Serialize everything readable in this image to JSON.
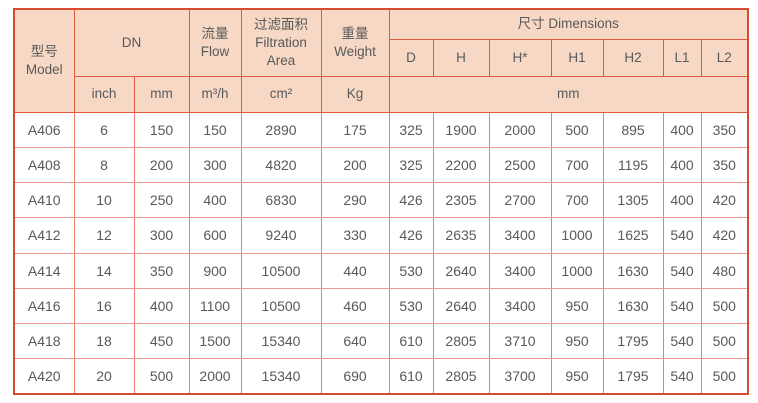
{
  "colors": {
    "header_background": "#f7d8c4",
    "grid_line": "#df5a3e",
    "data_grid_line": "#ea7e6b",
    "outer_border": "#d74c30",
    "text": "#58595b"
  },
  "table": {
    "header": {
      "model": {
        "zh": "型号",
        "en": "Model"
      },
      "dn": {
        "label": "DN"
      },
      "flow": {
        "zh": "流量",
        "en": "Flow"
      },
      "filtration_area": {
        "zh": "过滤面积",
        "en": "Filtration Area"
      },
      "weight": {
        "zh": "重量",
        "en": "Weight"
      },
      "dimensions": {
        "label": "尺寸 Dimensions",
        "columns": [
          "D",
          "H",
          "H*",
          "H1",
          "H2",
          "L1",
          "L2"
        ],
        "unit": "mm"
      },
      "units": {
        "dn_inch": "inch",
        "dn_mm": "mm",
        "flow": "m³/h",
        "filtration_area": "cm²",
        "weight": "Kg"
      }
    },
    "column_keys": [
      "model",
      "dn-inch",
      "dn-mm",
      "flow",
      "filtration-area",
      "weight",
      "dim-d",
      "dim-h",
      "dim-h-star",
      "dim-h1",
      "dim-h2",
      "dim-l1",
      "dim-l2"
    ],
    "rows": [
      [
        "A406",
        "6",
        "150",
        "150",
        "2890",
        "175",
        "325",
        "1900",
        "2000",
        "500",
        "895",
        "400",
        "350"
      ],
      [
        "A408",
        "8",
        "200",
        "300",
        "4820",
        "200",
        "325",
        "2200",
        "2500",
        "700",
        "1195",
        "400",
        "350"
      ],
      [
        "A410",
        "10",
        "250",
        "400",
        "6830",
        "290",
        "426",
        "2305",
        "2700",
        "700",
        "1305",
        "400",
        "420"
      ],
      [
        "A412",
        "12",
        "300",
        "600",
        "9240",
        "330",
        "426",
        "2635",
        "3400",
        "1000",
        "1625",
        "540",
        "420"
      ],
      [
        "A414",
        "14",
        "350",
        "900",
        "10500",
        "440",
        "530",
        "2640",
        "3400",
        "1000",
        "1630",
        "540",
        "480"
      ],
      [
        "A416",
        "16",
        "400",
        "1100",
        "10500",
        "460",
        "530",
        "2640",
        "3400",
        "950",
        "1630",
        "540",
        "500"
      ],
      [
        "A418",
        "18",
        "450",
        "1500",
        "15340",
        "640",
        "610",
        "2805",
        "3710",
        "950",
        "1795",
        "540",
        "500"
      ],
      [
        "A420",
        "20",
        "500",
        "2000",
        "15340",
        "690",
        "610",
        "2805",
        "3700",
        "950",
        "1795",
        "540",
        "500"
      ]
    ]
  }
}
